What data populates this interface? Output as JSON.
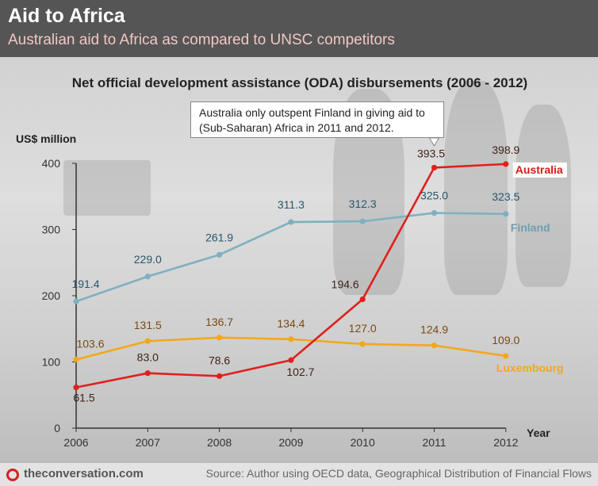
{
  "header": {
    "title": "Aid to Africa",
    "subtitle": "Australian aid to Africa as compared to UNSC competitors"
  },
  "footer": {
    "site": "theconversation.com",
    "source": "Source: Author using OECD data, Geographical Distribution of Financial Flows"
  },
  "annotation": {
    "line1": "Australia only outspent Finland in giving aid to",
    "line2": "(Sub-Saharan) Africa in 2011 and 2012."
  },
  "chart_data": {
    "type": "line",
    "title": "Net official development assistance (ODA) disbursements (2006 - 2012)",
    "ylabel": "US$ million",
    "xlabel": "Year",
    "ylim": [
      0,
      400
    ],
    "yticks": [
      0,
      100,
      200,
      300,
      400
    ],
    "categories": [
      "2006",
      "2007",
      "2008",
      "2009",
      "2010",
      "2011",
      "2012"
    ],
    "series": [
      {
        "name": "Finland",
        "color": "#7fb0c0",
        "values": [
          191.4,
          229.0,
          261.9,
          311.3,
          312.3,
          325.0,
          323.5
        ],
        "labels": [
          "191.4",
          "229.0",
          "261.9",
          "311.3",
          "312.3",
          "325.0",
          "323.5"
        ]
      },
      {
        "name": "Luxembourg",
        "color": "#f2a81c",
        "values": [
          103.6,
          131.5,
          136.7,
          134.4,
          127.0,
          124.9,
          109.0
        ],
        "labels": [
          "103.6",
          "131.5",
          "136.7",
          "134.4",
          "127.0",
          "124.9",
          "109.0"
        ]
      },
      {
        "name": "Australia",
        "color": "#e0201c",
        "values": [
          61.5,
          83.0,
          78.6,
          102.7,
          194.6,
          393.5,
          398.9
        ],
        "labels": [
          "61.5",
          "83.0",
          "78.6",
          "102.7",
          "194.6",
          "393.5",
          "398.9"
        ]
      }
    ],
    "grid": false,
    "legend": "inline-right"
  }
}
